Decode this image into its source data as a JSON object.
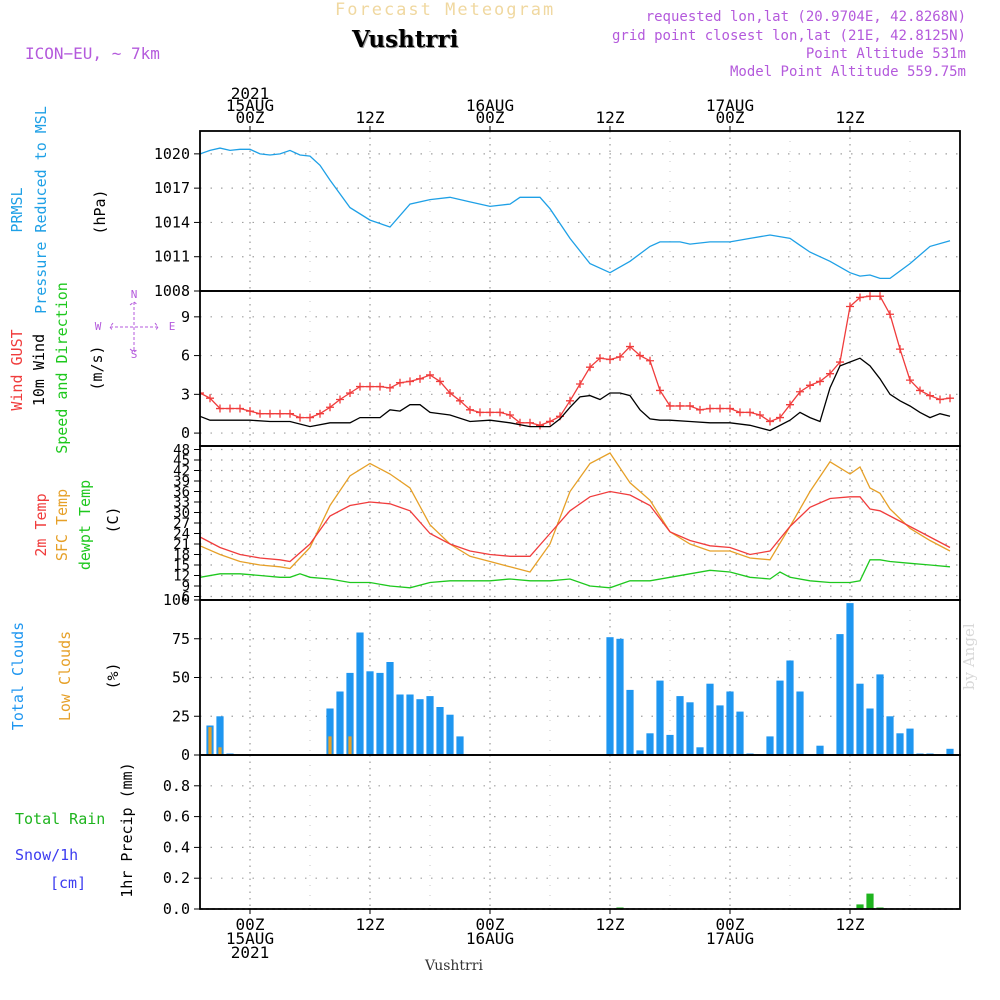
{
  "header": {
    "top_title": "Forecast Meteogram",
    "location": "Vushtrri",
    "model": "ICON−EU, ~ 7km",
    "requested": "requested lon,lat (20.9704E, 42.8268N)",
    "grid_point": "grid point closest lon,lat (21E, 42.8125N)",
    "point_altitude": "Point Altitude 531m",
    "model_altitude": "Model Point Altitude 559.75m",
    "footer_location": "Vushtrri",
    "watermark": "by Angel"
  },
  "colors": {
    "pressure": "#1ea0e6",
    "gust": "#f03c3c",
    "wind10m": "#000000",
    "t2m": "#f03c3c",
    "sfc": "#e6a028",
    "dewpt": "#1ec81e",
    "total_clouds": "#1e96f0",
    "low_clouds": "#e6a028",
    "rain": "#1eb41e",
    "snow": "#3c3cf0",
    "label_purple": "#b45adc"
  },
  "time_axis": {
    "top_ticks": [
      {
        "hour": 0,
        "lines": [
          "2021",
          "15AUG",
          "00Z"
        ]
      },
      {
        "hour": 12,
        "lines": [
          "12Z"
        ]
      },
      {
        "hour": 24,
        "lines": [
          "16AUG",
          "00Z"
        ]
      },
      {
        "hour": 36,
        "lines": [
          "12Z"
        ]
      },
      {
        "hour": 48,
        "lines": [
          "17AUG",
          "00Z"
        ]
      },
      {
        "hour": 60,
        "lines": [
          "12Z"
        ]
      }
    ],
    "bottom_ticks": [
      {
        "hour": 0,
        "lines": [
          "00Z",
          "15AUG",
          "2021"
        ]
      },
      {
        "hour": 12,
        "lines": [
          "12Z"
        ]
      },
      {
        "hour": 24,
        "lines": [
          "00Z",
          "16AUG"
        ]
      },
      {
        "hour": 36,
        "lines": [
          "12Z"
        ]
      },
      {
        "hour": 48,
        "lines": [
          "00Z",
          "17AUG"
        ]
      },
      {
        "hour": 60,
        "lines": [
          "12Z"
        ]
      }
    ]
  },
  "panel_labels": {
    "pressure": {
      "lines": [
        "PRMSL",
        "Pressure Reduced to MSL"
      ],
      "unit": "(hPa)"
    },
    "wind": {
      "lines": [
        "Wind GUST",
        "10m Wind",
        "Speed and Direction"
      ],
      "unit": "(m/s)",
      "compass": [
        "N",
        "S",
        "W",
        "E"
      ]
    },
    "temp": {
      "lines": [
        "2m Temp",
        "SFC Temp",
        "dewpt Temp"
      ],
      "unit": "(C)"
    },
    "clouds": {
      "lines": [
        "Total Clouds",
        "Low Clouds"
      ],
      "unit": "(%)"
    },
    "precip": {
      "lines": [
        "Total  Rain",
        "Snow/1h",
        "[cm]"
      ],
      "axis": "1hr Precip (mm)"
    }
  },
  "chart_data": {
    "type": "line",
    "x_unit": "hours from 2021-08-15 00Z",
    "xlim": [
      -5,
      71
    ],
    "pressure": {
      "name": "PRMSL",
      "ylim": [
        1008,
        1022
      ],
      "yticks": [
        1008,
        1011,
        1014,
        1017,
        1020
      ],
      "x": [
        -5,
        -4,
        -3,
        -2,
        -1,
        0,
        1,
        2,
        3,
        4,
        5,
        6,
        7,
        8,
        10,
        12,
        14,
        16,
        18,
        20,
        22,
        24,
        26,
        27,
        28,
        29,
        30,
        32,
        34,
        36,
        38,
        40,
        41,
        42,
        43,
        44,
        46,
        48,
        50,
        52,
        54,
        55,
        56,
        58,
        60,
        61,
        62,
        63,
        64,
        66,
        68,
        70
      ],
      "values": [
        1020.0,
        1020.3,
        1020.5,
        1020.3,
        1020.4,
        1020.4,
        1020.0,
        1019.9,
        1020.0,
        1020.3,
        1019.9,
        1019.8,
        1019.0,
        1017.7,
        1015.3,
        1014.2,
        1013.6,
        1015.6,
        1016.0,
        1016.2,
        1015.8,
        1015.4,
        1015.6,
        1016.2,
        1016.2,
        1016.2,
        1015.2,
        1012.6,
        1010.4,
        1009.6,
        1010.6,
        1011.9,
        1012.3,
        1012.3,
        1012.3,
        1012.1,
        1012.3,
        1012.3,
        1012.6,
        1012.9,
        1012.6,
        1012.0,
        1011.4,
        1010.6,
        1009.6,
        1009.3,
        1009.4,
        1009.1,
        1009.1,
        1010.4,
        1011.9,
        1012.4
      ]
    },
    "wind": {
      "ylim": [
        -1,
        11
      ],
      "yticks": [
        0,
        3,
        6,
        9
      ],
      "gust": {
        "name": "Wind GUST",
        "x": [
          -5,
          -4,
          -3,
          -2,
          -1,
          0,
          1,
          2,
          3,
          4,
          5,
          6,
          7,
          8,
          9,
          10,
          11,
          12,
          13,
          14,
          15,
          16,
          17,
          18,
          19,
          20,
          21,
          22,
          23,
          24,
          25,
          26,
          27,
          28,
          29,
          30,
          31,
          32,
          33,
          34,
          35,
          36,
          37,
          38,
          39,
          40,
          41,
          42,
          43,
          44,
          45,
          46,
          47,
          48,
          49,
          50,
          51,
          52,
          53,
          54,
          55,
          56,
          57,
          58,
          59,
          60,
          61,
          62,
          63,
          64,
          65,
          66,
          67,
          68,
          69,
          70
        ],
        "values": [
          3.1,
          2.7,
          1.9,
          1.9,
          1.9,
          1.7,
          1.5,
          1.5,
          1.5,
          1.5,
          1.2,
          1.2,
          1.5,
          2.0,
          2.6,
          3.1,
          3.6,
          3.6,
          3.6,
          3.5,
          3.9,
          4.0,
          4.2,
          4.5,
          4.0,
          3.1,
          2.5,
          1.8,
          1.6,
          1.6,
          1.6,
          1.4,
          0.8,
          0.8,
          0.6,
          0.9,
          1.3,
          2.5,
          3.8,
          5.1,
          5.8,
          5.7,
          5.9,
          6.7,
          6.0,
          5.6,
          3.3,
          2.1,
          2.1,
          2.1,
          1.8,
          1.9,
          1.9,
          1.9,
          1.6,
          1.6,
          1.4,
          0.9,
          1.2,
          2.2,
          3.2,
          3.7,
          4.0,
          4.6,
          5.5,
          9.8,
          10.5,
          10.6,
          10.6,
          9.2,
          6.5,
          4.1,
          3.3,
          2.9,
          2.6,
          2.7
        ]
      },
      "wind10m": {
        "name": "10m Wind",
        "x": [
          -5,
          -4,
          -2,
          0,
          2,
          4,
          6,
          8,
          10,
          11,
          12,
          13,
          14,
          15,
          16,
          17,
          18,
          20,
          22,
          24,
          26,
          28,
          30,
          31,
          32,
          33,
          34,
          35,
          36,
          37,
          38,
          39,
          40,
          41,
          42,
          44,
          46,
          48,
          50,
          52,
          54,
          55,
          56,
          57,
          58,
          59,
          60,
          61,
          62,
          63,
          64,
          65,
          66,
          67,
          68,
          69,
          70
        ],
        "values": [
          1.3,
          1.0,
          1.0,
          1.0,
          0.9,
          0.9,
          0.5,
          0.8,
          0.8,
          1.2,
          1.2,
          1.2,
          1.8,
          1.7,
          2.2,
          2.2,
          1.6,
          1.4,
          0.9,
          1.0,
          0.8,
          0.5,
          0.5,
          1.1,
          2.0,
          2.8,
          2.9,
          2.6,
          3.1,
          3.1,
          2.9,
          1.8,
          1.1,
          1.0,
          1.0,
          0.9,
          0.8,
          0.8,
          0.6,
          0.2,
          1.0,
          1.6,
          1.2,
          0.9,
          3.5,
          5.2,
          5.5,
          5.8,
          5.2,
          4.2,
          3.0,
          2.5,
          2.1,
          1.6,
          1.2,
          1.5,
          1.3
        ]
      }
    },
    "temperature": {
      "ylim": [
        5,
        49
      ],
      "yticks": [
        6,
        9,
        12,
        15,
        18,
        21,
        24,
        27,
        30,
        33,
        36,
        39,
        42,
        45,
        48
      ],
      "t2m": {
        "name": "2m Temp",
        "x": [
          -5,
          -3,
          -1,
          1,
          3,
          4,
          6,
          8,
          10,
          12,
          14,
          16,
          18,
          20,
          22,
          24,
          26,
          28,
          30,
          32,
          34,
          36,
          38,
          40,
          42,
          44,
          46,
          48,
          50,
          52,
          54,
          56,
          58,
          60,
          61,
          62,
          63,
          64,
          66,
          68,
          70
        ],
        "values": [
          23.0,
          20.0,
          18.0,
          17.0,
          16.5,
          16.0,
          21.0,
          29.0,
          32.0,
          33.0,
          32.5,
          30.5,
          24.0,
          21.0,
          19.0,
          18.0,
          17.5,
          17.5,
          24.0,
          30.5,
          34.5,
          36.0,
          35.0,
          32.0,
          24.5,
          22.0,
          20.5,
          20.0,
          18.0,
          19.0,
          26.0,
          31.5,
          34.0,
          34.5,
          34.5,
          31.0,
          30.5,
          29.0,
          26.0,
          23.0,
          20.0
        ]
      },
      "sfc": {
        "name": "SFC Temp",
        "x": [
          -5,
          -3,
          -1,
          1,
          3,
          4,
          6,
          8,
          10,
          12,
          14,
          16,
          18,
          20,
          22,
          24,
          26,
          28,
          30,
          32,
          34,
          36,
          38,
          40,
          42,
          44,
          46,
          48,
          50,
          52,
          54,
          56,
          58,
          60,
          61,
          62,
          63,
          64,
          66,
          68,
          70
        ],
        "values": [
          20.5,
          18.0,
          16.0,
          15.0,
          14.5,
          14.0,
          20.0,
          32.0,
          40.5,
          44.0,
          41.0,
          37.0,
          26.5,
          21.0,
          17.5,
          16.0,
          14.5,
          13.0,
          21.0,
          36.0,
          44.0,
          47.0,
          38.5,
          33.5,
          24.5,
          21.0,
          19.0,
          19.0,
          17.0,
          16.5,
          26.0,
          36.0,
          44.5,
          41.0,
          43.0,
          37.0,
          35.5,
          31.0,
          25.5,
          22.0,
          19.0
        ]
      },
      "dewpt": {
        "name": "dewpt Temp",
        "x": [
          -5,
          -3,
          -1,
          1,
          3,
          4,
          5,
          6,
          8,
          10,
          12,
          14,
          16,
          18,
          20,
          22,
          24,
          26,
          28,
          30,
          32,
          34,
          36,
          38,
          40,
          42,
          44,
          46,
          48,
          50,
          52,
          53,
          54,
          56,
          58,
          60,
          61,
          62,
          63,
          64,
          66,
          68,
          70
        ],
        "values": [
          11.5,
          12.5,
          12.5,
          12.0,
          11.5,
          11.5,
          12.5,
          11.5,
          11.0,
          10.0,
          10.0,
          9.0,
          8.5,
          10.0,
          10.5,
          10.5,
          10.5,
          11.0,
          10.5,
          10.5,
          11.0,
          9.0,
          8.5,
          10.5,
          10.5,
          11.5,
          12.5,
          13.5,
          13.0,
          11.5,
          11.0,
          13.0,
          11.5,
          10.5,
          10.0,
          10.0,
          10.5,
          16.5,
          16.5,
          16.0,
          15.5,
          15.0,
          14.5
        ]
      }
    },
    "clouds": {
      "ylim": [
        0,
        100
      ],
      "yticks": [
        0,
        25,
        50,
        75,
        100
      ],
      "hours": [
        -4,
        -3,
        -2,
        8,
        9,
        10,
        11,
        12,
        13,
        14,
        15,
        16,
        17,
        18,
        19,
        20,
        21,
        36,
        37,
        38,
        39,
        40,
        41,
        42,
        43,
        44,
        45,
        46,
        47,
        48,
        49,
        50,
        52,
        53,
        54,
        55,
        57,
        59,
        60,
        61,
        62,
        63,
        64,
        65,
        66,
        67,
        68,
        70
      ],
      "total": [
        19,
        25,
        1,
        30,
        41,
        53,
        79,
        54,
        53,
        60,
        39,
        39,
        36,
        38,
        31,
        26,
        12,
        76,
        75,
        42,
        3,
        14,
        48,
        13,
        38,
        34,
        5,
        46,
        32,
        41,
        28,
        1,
        12,
        48,
        61,
        41,
        6,
        78,
        98,
        46,
        30,
        52,
        25,
        14,
        17,
        1,
        1,
        4
      ],
      "low": [
        18,
        5,
        0,
        12,
        0,
        12,
        0,
        0,
        0,
        0,
        0,
        0,
        0,
        0,
        0,
        0,
        0,
        0,
        0,
        0,
        0,
        0,
        0,
        0,
        0,
        0,
        0,
        0,
        0,
        0,
        0,
        0,
        0,
        0,
        0,
        0,
        0,
        0,
        0,
        0,
        0,
        0,
        0,
        0,
        0,
        0,
        0,
        0
      ]
    },
    "precip": {
      "ylim": [
        0,
        1.0
      ],
      "yticks": [
        0,
        0.2,
        0.4,
        0.6,
        0.8
      ],
      "hours": [
        37,
        61,
        62,
        63
      ],
      "rain": [
        0.01,
        0.03,
        0.1,
        0.01
      ]
    }
  }
}
